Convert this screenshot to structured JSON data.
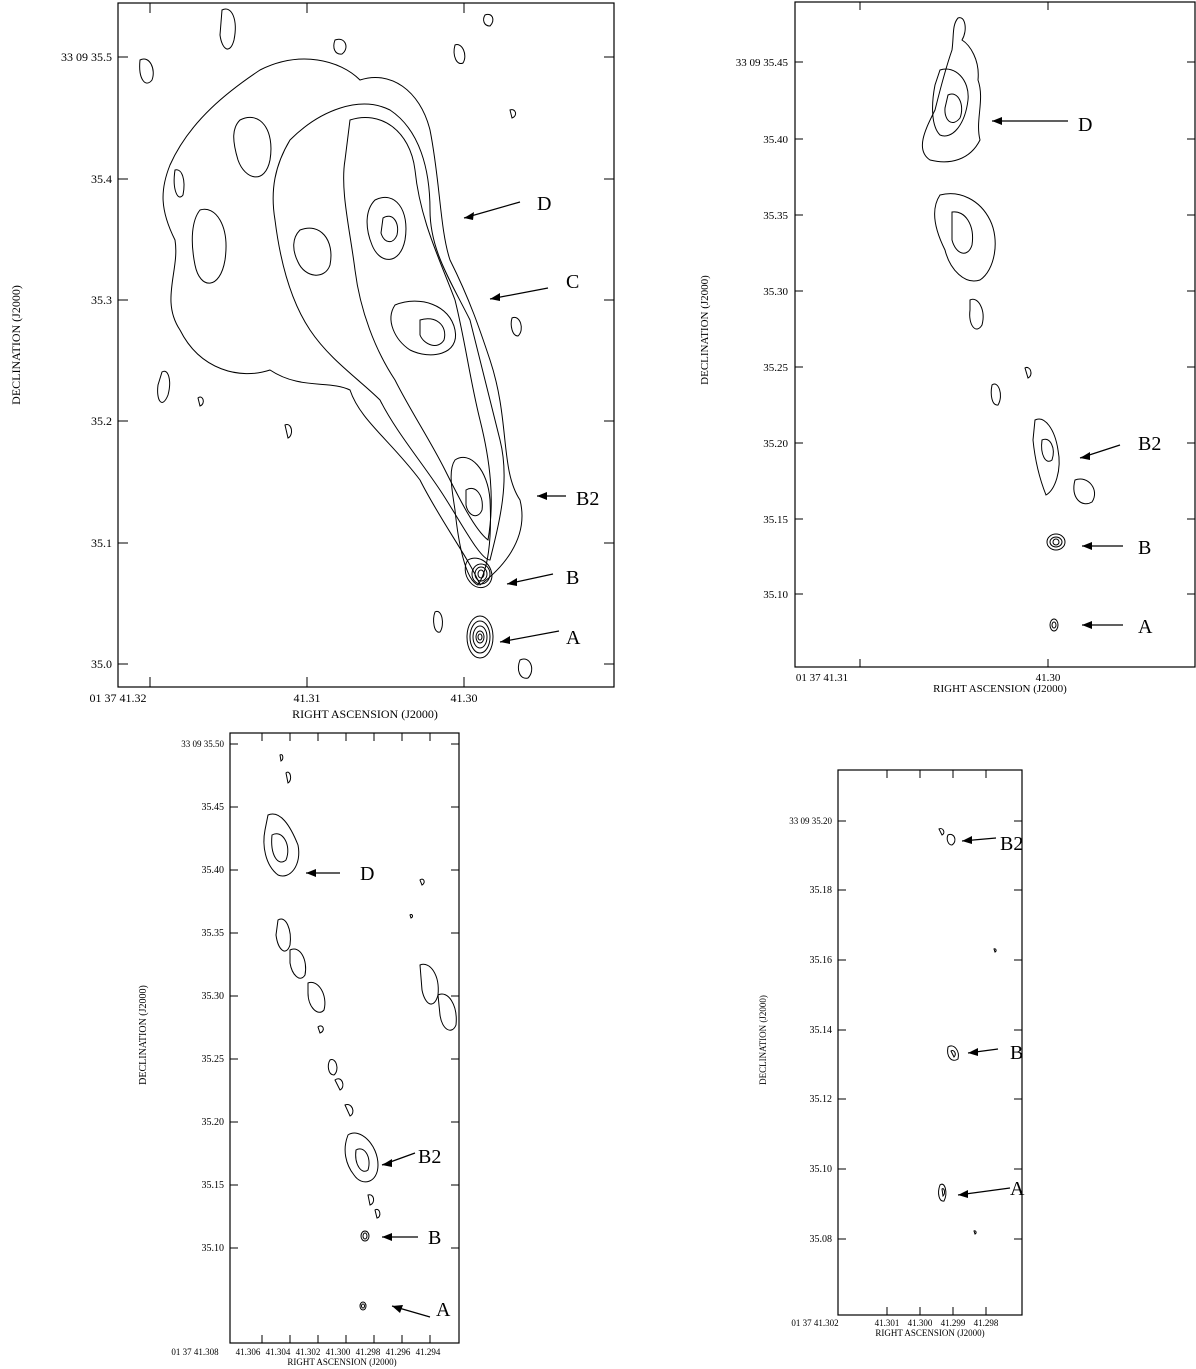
{
  "panels": [
    {
      "id": "a",
      "xlabel": "RIGHT ASCENSION (J2000)",
      "ylabel": "DECLINATION (J2000)",
      "x_ticks": [
        "01 37 41.32",
        "41.31",
        "41.30"
      ],
      "y_ticks": [
        "33 09 35.5",
        "35.4",
        "35.3",
        "35.2",
        "35.1",
        "35.0"
      ],
      "labels": [
        "D",
        "C",
        "B2",
        "B",
        "A"
      ]
    },
    {
      "id": "b",
      "xlabel": "RIGHT ASCENSION (J2000)",
      "ylabel": "DECLINATION (J2000)",
      "x_ticks": [
        "01 37 41.31",
        "41.30"
      ],
      "y_ticks": [
        "33 09 35.45",
        "35.40",
        "35.35",
        "35.30",
        "35.25",
        "35.20",
        "35.15",
        "35.10"
      ],
      "labels": [
        "D",
        "B2",
        "B",
        "A"
      ]
    },
    {
      "id": "c",
      "xlabel": "RIGHT ASCENSION (J2000)",
      "ylabel": "DECLINATION (J2000)",
      "x_ticks": [
        "01 37 41.308",
        "41.306",
        "41.304",
        "41.302",
        "41.300",
        "41.298",
        "41.296",
        "41.294"
      ],
      "y_ticks": [
        "33 09 35.50",
        "35.45",
        "35.40",
        "35.35",
        "35.30",
        "35.25",
        "35.20",
        "35.15",
        "35.10"
      ],
      "labels": [
        "D",
        "B2",
        "B",
        "A"
      ]
    },
    {
      "id": "d",
      "xlabel": "RIGHT ASCENSION (J2000)",
      "ylabel": "DECLINATION (J2000)",
      "x_ticks": [
        "01 37 41.302",
        "41.301",
        "41.300",
        "41.299",
        "41.298"
      ],
      "y_ticks": [
        "33 09 35.20",
        "35.18",
        "35.16",
        "35.14",
        "35.12",
        "35.10",
        "35.08"
      ],
      "labels": [
        "B2",
        "B",
        "A"
      ]
    }
  ]
}
